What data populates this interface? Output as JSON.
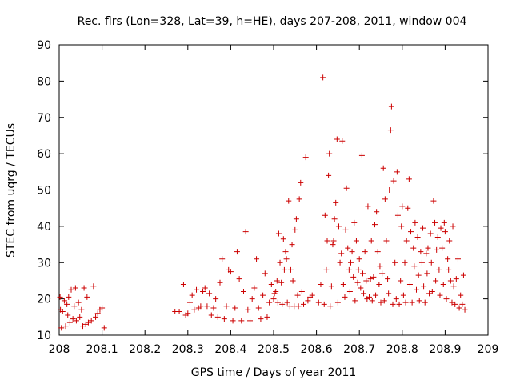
{
  "chart_data": {
    "type": "scatter",
    "title": "Rec. flrs (Lon=328, Lat=39, h=HE), days 207-208, 2011, window 004",
    "xlabel": "GPS time / Days of year 2011",
    "ylabel": "STEC from uqrg / TECUs",
    "xlim": [
      208,
      209
    ],
    "ylim": [
      10,
      90
    ],
    "xticks": [
      "208",
      "208.1",
      "208.2",
      "208.3",
      "208.4",
      "208.5",
      "208.6",
      "208.7",
      "208.8",
      "208.9",
      "209"
    ],
    "yticks": [
      "10",
      "20",
      "30",
      "40",
      "50",
      "60",
      "70",
      "80",
      "90"
    ],
    "marker": "plus",
    "color": "#cc0000",
    "series": [
      {
        "name": "STEC",
        "points": [
          [
            208.002,
            20.5
          ],
          [
            208.003,
            17
          ],
          [
            208.005,
            12
          ],
          [
            208.008,
            16.5
          ],
          [
            208.012,
            19.5
          ],
          [
            208.015,
            12.5
          ],
          [
            208.018,
            18.5
          ],
          [
            208.02,
            15.5
          ],
          [
            208.022,
            20.5
          ],
          [
            208.025,
            13.5
          ],
          [
            208.028,
            22.5
          ],
          [
            208.032,
            14.5
          ],
          [
            208.035,
            18
          ],
          [
            208.038,
            23
          ],
          [
            208.04,
            14
          ],
          [
            208.045,
            19
          ],
          [
            208.048,
            15
          ],
          [
            208.052,
            17
          ],
          [
            208.055,
            12.5
          ],
          [
            208.058,
            23
          ],
          [
            208.062,
            13
          ],
          [
            208.065,
            20.5
          ],
          [
            208.068,
            13.5
          ],
          [
            208.075,
            14
          ],
          [
            208.08,
            23.5
          ],
          [
            208.085,
            15
          ],
          [
            208.09,
            16
          ],
          [
            208.095,
            17
          ],
          [
            208.1,
            17.5
          ],
          [
            208.105,
            12
          ],
          [
            208.27,
            16.5
          ],
          [
            208.28,
            16.5
          ],
          [
            208.29,
            24
          ],
          [
            208.295,
            15.5
          ],
          [
            208.3,
            16
          ],
          [
            208.305,
            19
          ],
          [
            208.31,
            21
          ],
          [
            208.315,
            17
          ],
          [
            208.32,
            22.5
          ],
          [
            208.325,
            17.5
          ],
          [
            208.33,
            18
          ],
          [
            208.335,
            22
          ],
          [
            208.34,
            23
          ],
          [
            208.345,
            18
          ],
          [
            208.35,
            21.5
          ],
          [
            208.355,
            15.5
          ],
          [
            208.36,
            17.5
          ],
          [
            208.365,
            20
          ],
          [
            208.37,
            15
          ],
          [
            208.375,
            24.5
          ],
          [
            208.38,
            31
          ],
          [
            208.385,
            14.5
          ],
          [
            208.39,
            18
          ],
          [
            208.395,
            28
          ],
          [
            208.4,
            27.5
          ],
          [
            208.405,
            14
          ],
          [
            208.41,
            17.5
          ],
          [
            208.415,
            33
          ],
          [
            208.42,
            25.5
          ],
          [
            208.425,
            14
          ],
          [
            208.43,
            22
          ],
          [
            208.435,
            38.5
          ],
          [
            208.44,
            17
          ],
          [
            208.445,
            14
          ],
          [
            208.45,
            20
          ],
          [
            208.455,
            23
          ],
          [
            208.46,
            31
          ],
          [
            208.465,
            17.5
          ],
          [
            208.47,
            14.5
          ],
          [
            208.475,
            21
          ],
          [
            208.48,
            27
          ],
          [
            208.485,
            15
          ],
          [
            208.49,
            19
          ],
          [
            208.495,
            24
          ],
          [
            208.5,
            20
          ],
          [
            208.502,
            21.5
          ],
          [
            208.505,
            22
          ],
          [
            208.508,
            25
          ],
          [
            208.51,
            19
          ],
          [
            208.512,
            38
          ],
          [
            208.515,
            30
          ],
          [
            208.518,
            24.5
          ],
          [
            208.52,
            18.5
          ],
          [
            208.523,
            36.5
          ],
          [
            208.525,
            28
          ],
          [
            208.528,
            33
          ],
          [
            208.53,
            31
          ],
          [
            208.532,
            19
          ],
          [
            208.535,
            47
          ],
          [
            208.538,
            18
          ],
          [
            208.54,
            28
          ],
          [
            208.543,
            35
          ],
          [
            208.545,
            25
          ],
          [
            208.548,
            18
          ],
          [
            208.55,
            39
          ],
          [
            208.553,
            42
          ],
          [
            208.556,
            21
          ],
          [
            208.558,
            18
          ],
          [
            208.56,
            47.5
          ],
          [
            208.563,
            52
          ],
          [
            208.566,
            22
          ],
          [
            208.57,
            18.5
          ],
          [
            208.575,
            59
          ],
          [
            208.58,
            19.5
          ],
          [
            208.585,
            20.5
          ],
          [
            208.59,
            21
          ],
          [
            208.605,
            19
          ],
          [
            208.61,
            24
          ],
          [
            208.615,
            81
          ],
          [
            208.618,
            18.5
          ],
          [
            208.62,
            43
          ],
          [
            208.623,
            28
          ],
          [
            208.625,
            36
          ],
          [
            208.628,
            54
          ],
          [
            208.63,
            60
          ],
          [
            208.632,
            18
          ],
          [
            208.635,
            23.5
          ],
          [
            208.638,
            35
          ],
          [
            208.64,
            36
          ],
          [
            208.642,
            42
          ],
          [
            208.645,
            46.5
          ],
          [
            208.648,
            64
          ],
          [
            208.65,
            19
          ],
          [
            208.652,
            40
          ],
          [
            208.655,
            30
          ],
          [
            208.658,
            32.5
          ],
          [
            208.66,
            63.5
          ],
          [
            208.663,
            24
          ],
          [
            208.666,
            20.5
          ],
          [
            208.668,
            39
          ],
          [
            208.67,
            50.5
          ],
          [
            208.673,
            34
          ],
          [
            208.676,
            28
          ],
          [
            208.678,
            22
          ],
          [
            208.68,
            30
          ],
          [
            208.683,
            33
          ],
          [
            208.686,
            26
          ],
          [
            208.688,
            41
          ],
          [
            208.69,
            19.5
          ],
          [
            208.693,
            36
          ],
          [
            208.696,
            24.5
          ],
          [
            208.698,
            28
          ],
          [
            208.7,
            31
          ],
          [
            208.703,
            23
          ],
          [
            208.706,
            59.5
          ],
          [
            208.708,
            27
          ],
          [
            208.71,
            21.5
          ],
          [
            208.713,
            33
          ],
          [
            208.716,
            25
          ],
          [
            208.718,
            20
          ],
          [
            208.72,
            45.5
          ],
          [
            208.723,
            20.5
          ],
          [
            208.726,
            25.5
          ],
          [
            208.728,
            36
          ],
          [
            208.73,
            19.5
          ],
          [
            208.733,
            26
          ],
          [
            208.736,
            40.5
          ],
          [
            208.738,
            21
          ],
          [
            208.74,
            44
          ],
          [
            208.743,
            33
          ],
          [
            208.746,
            24
          ],
          [
            208.748,
            29
          ],
          [
            208.75,
            19
          ],
          [
            208.753,
            27
          ],
          [
            208.756,
            56
          ],
          [
            208.758,
            19.5
          ],
          [
            208.76,
            47.5
          ],
          [
            208.763,
            36
          ],
          [
            208.766,
            25.5
          ],
          [
            208.768,
            21.5
          ],
          [
            208.77,
            50
          ],
          [
            208.773,
            66.5
          ],
          [
            208.775,
            73
          ],
          [
            208.778,
            18.5
          ],
          [
            208.78,
            52.5
          ],
          [
            208.783,
            30
          ],
          [
            208.786,
            20
          ],
          [
            208.788,
            55
          ],
          [
            208.79,
            43
          ],
          [
            208.793,
            18.5
          ],
          [
            208.796,
            25
          ],
          [
            208.798,
            40
          ],
          [
            208.8,
            45.5
          ],
          [
            208.803,
            21
          ],
          [
            208.806,
            30
          ],
          [
            208.808,
            19
          ],
          [
            208.81,
            36
          ],
          [
            208.813,
            45
          ],
          [
            208.816,
            53
          ],
          [
            208.818,
            24
          ],
          [
            208.82,
            38.5
          ],
          [
            208.823,
            19
          ],
          [
            208.826,
            34
          ],
          [
            208.828,
            29
          ],
          [
            208.83,
            41
          ],
          [
            208.833,
            22.5
          ],
          [
            208.836,
            37
          ],
          [
            208.838,
            26.5
          ],
          [
            208.84,
            19.5
          ],
          [
            208.843,
            33
          ],
          [
            208.846,
            30
          ],
          [
            208.848,
            39.5
          ],
          [
            208.85,
            23.5
          ],
          [
            208.853,
            19
          ],
          [
            208.856,
            32.5
          ],
          [
            208.858,
            27
          ],
          [
            208.86,
            34
          ],
          [
            208.863,
            21.5
          ],
          [
            208.866,
            38
          ],
          [
            208.868,
            30
          ],
          [
            208.87,
            22
          ],
          [
            208.873,
            47
          ],
          [
            208.876,
            41
          ],
          [
            208.878,
            25
          ],
          [
            208.88,
            33.5
          ],
          [
            208.883,
            37
          ],
          [
            208.886,
            28
          ],
          [
            208.888,
            21
          ],
          [
            208.89,
            39.5
          ],
          [
            208.893,
            34
          ],
          [
            208.896,
            24
          ],
          [
            208.898,
            41
          ],
          [
            208.9,
            38.5
          ],
          [
            208.903,
            20
          ],
          [
            208.906,
            31
          ],
          [
            208.908,
            28
          ],
          [
            208.91,
            36
          ],
          [
            208.913,
            25
          ],
          [
            208.916,
            19
          ],
          [
            208.918,
            40
          ],
          [
            208.92,
            23.5
          ],
          [
            208.923,
            18.5
          ],
          [
            208.926,
            25.5
          ],
          [
            208.93,
            31
          ],
          [
            208.933,
            17.5
          ],
          [
            208.936,
            21
          ],
          [
            208.94,
            18.5
          ],
          [
            208.943,
            26.5
          ],
          [
            208.946,
            17
          ]
        ]
      }
    ]
  }
}
